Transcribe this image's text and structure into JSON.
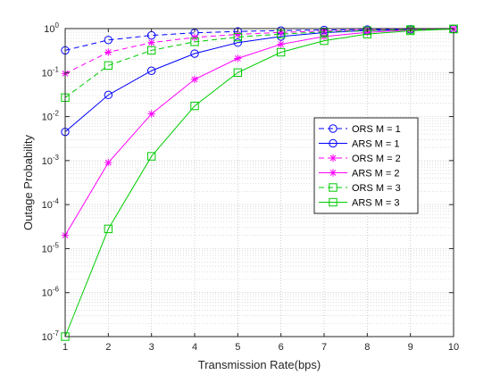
{
  "chart_data": {
    "type": "line",
    "xlabel": "Transmission Rate(bps)",
    "ylabel": "Outage Probability",
    "x": [
      1,
      2,
      3,
      4,
      5,
      6,
      7,
      8,
      9,
      10
    ],
    "xlim": [
      1,
      10
    ],
    "ylim": [
      1e-07,
      1
    ],
    "yscale": "log",
    "grid": true,
    "legend_position": "right",
    "x_ticks": [
      "1",
      "2",
      "3",
      "4",
      "5",
      "6",
      "7",
      "8",
      "9",
      "10"
    ],
    "y_ticks": [
      {
        "base": "10",
        "exp": "-7"
      },
      {
        "base": "10",
        "exp": "-6"
      },
      {
        "base": "10",
        "exp": "-5"
      },
      {
        "base": "10",
        "exp": "-4"
      },
      {
        "base": "10",
        "exp": "-3"
      },
      {
        "base": "10",
        "exp": "-2"
      },
      {
        "base": "10",
        "exp": "-1"
      },
      {
        "base": "10",
        "exp": "0"
      }
    ],
    "series": [
      {
        "name": "ORS M = 1",
        "color": "#0000ff",
        "dash": "dashed",
        "marker": "circle",
        "values": [
          0.32,
          0.55,
          0.7,
          0.8,
          0.86,
          0.9,
          0.93,
          0.95,
          0.97,
          0.98
        ]
      },
      {
        "name": "ARS M = 1",
        "color": "#0000ff",
        "dash": "solid",
        "marker": "circle",
        "values": [
          0.0045,
          0.031,
          0.11,
          0.27,
          0.48,
          0.66,
          0.81,
          0.9,
          0.95,
          0.98
        ]
      },
      {
        "name": "ORS M = 2",
        "color": "#ff00ff",
        "dash": "dashed",
        "marker": "star",
        "values": [
          0.095,
          0.29,
          0.48,
          0.63,
          0.74,
          0.82,
          0.88,
          0.93,
          0.96,
          0.98
        ]
      },
      {
        "name": "ARS M = 2",
        "color": "#ff00ff",
        "dash": "solid",
        "marker": "star",
        "values": [
          2e-05,
          0.0009,
          0.0115,
          0.07,
          0.21,
          0.44,
          0.66,
          0.82,
          0.93,
          0.98
        ]
      },
      {
        "name": "ORS M = 3",
        "color": "#00cc00",
        "dash": "dashed",
        "marker": "square",
        "values": [
          0.027,
          0.145,
          0.32,
          0.5,
          0.64,
          0.75,
          0.84,
          0.9,
          0.95,
          0.98
        ]
      },
      {
        "name": "ARS M = 3",
        "color": "#00cc00",
        "dash": "solid",
        "marker": "square",
        "values": [
          1e-07,
          2.8e-05,
          0.00125,
          0.0175,
          0.1,
          0.29,
          0.53,
          0.75,
          0.89,
          0.98
        ]
      }
    ]
  }
}
